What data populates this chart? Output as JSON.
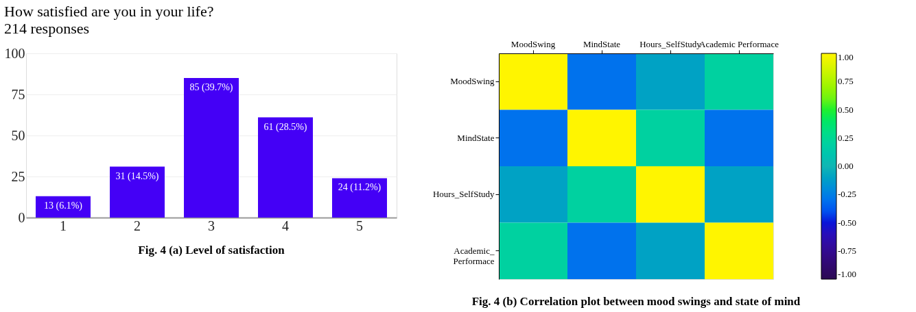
{
  "chart_data": [
    {
      "type": "bar",
      "title": "How satisfied are you in your life?",
      "subtitle": "214 responses",
      "categories": [
        "1",
        "2",
        "3",
        "4",
        "5"
      ],
      "values": [
        13,
        31,
        85,
        61,
        24
      ],
      "value_labels": [
        "13 (6.1%)",
        "31 (14.5%)",
        "85 (39.7%)",
        "61 (28.5%)",
        "24 (11.2%)"
      ],
      "color": "#4400f6",
      "ylim": [
        0,
        100
      ],
      "yticks": [
        0,
        25,
        50,
        75,
        100
      ],
      "grid": "y",
      "annotations": [
        "Fig. 4 (a) Level of satisfaction"
      ]
    },
    {
      "type": "heatmap",
      "categories": [
        "MoodSwing",
        "MindState",
        "Hours_SelfStudy",
        "Academic Performace"
      ],
      "y_categories": [
        "MoodSwing",
        "MindState",
        "Hours_SelfStudy",
        "Academic_ Performace"
      ],
      "cells": [
        [
          1.0,
          -0.3,
          -0.1,
          0.2
        ],
        [
          -0.3,
          1.0,
          0.2,
          -0.3
        ],
        [
          -0.1,
          0.2,
          1.0,
          -0.1
        ],
        [
          0.2,
          -0.3,
          -0.1,
          1.0
        ]
      ],
      "clim": [
        -1,
        1
      ],
      "cticks": [
        {
          "value": -1,
          "label": "-1.00"
        },
        {
          "value": -0.75,
          "label": "-0.75"
        },
        {
          "value": -0.5,
          "label": "-0.50"
        },
        {
          "value": -0.25,
          "label": "-0.25"
        },
        {
          "value": 0,
          "label": "0.00"
        },
        {
          "value": 0.25,
          "label": "0.25"
        },
        {
          "value": 0.5,
          "label": "0.50"
        },
        {
          "value": 0.75,
          "label": "0.75"
        },
        {
          "value": 1,
          "label": "1.00"
        }
      ],
      "annotations": [
        "Fig. 4 (b) Correlation plot between mood swings and state of mind"
      ]
    }
  ]
}
